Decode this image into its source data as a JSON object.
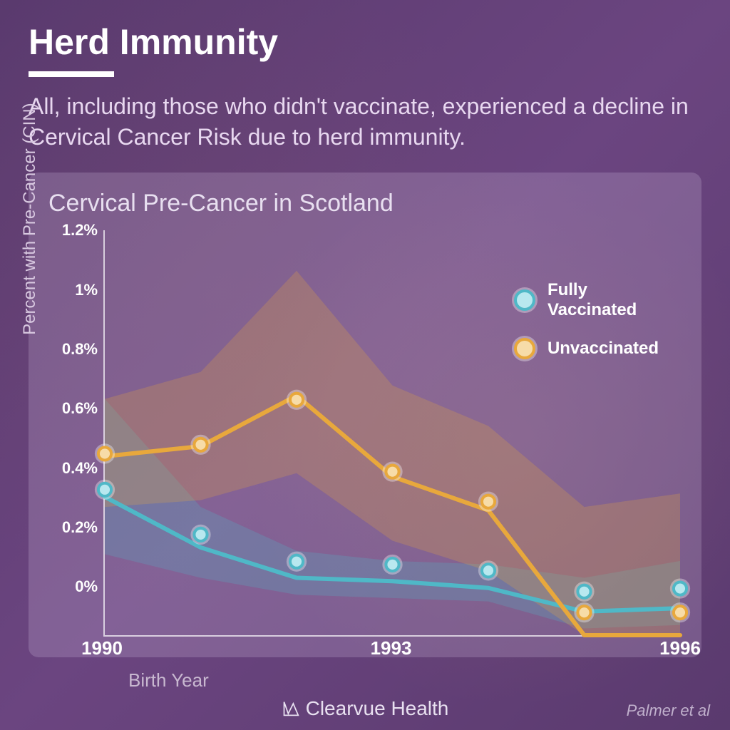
{
  "title": "Herd Immunity",
  "subtitle": "All, including those who didn't vaccinate, experienced a decline in Cervical Cancer Risk due to herd immunity.",
  "chart": {
    "type": "line",
    "title": "Cervical Pre-Cancer in Scotland",
    "y_label": "Percent with Pre-Cancer (CIN)",
    "x_label": "Birth Year",
    "ylim": [
      0,
      1.2
    ],
    "y_ticks": [
      {
        "value": 0,
        "label": "0%"
      },
      {
        "value": 0.2,
        "label": "0.2%"
      },
      {
        "value": 0.4,
        "label": "0.4%"
      },
      {
        "value": 0.6,
        "label": "0.6%"
      },
      {
        "value": 0.8,
        "label": "0.8%"
      },
      {
        "value": 1.0,
        "label": "1%"
      },
      {
        "value": 1.2,
        "label": "1.2%"
      }
    ],
    "x_values": [
      1990,
      1991,
      1992,
      1993,
      1994,
      1995,
      1996
    ],
    "x_tick_labels": [
      {
        "x": 1990,
        "label": "1990"
      },
      {
        "x": 1993,
        "label": "1993"
      },
      {
        "x": 1996,
        "label": "1996"
      }
    ],
    "series": [
      {
        "name": "Fully Vaccinated",
        "legend_label": "Fully\nVaccinated",
        "color": "#4fb8c7",
        "marker_fill": "#b8e8ef",
        "line_width": 6,
        "marker_radius": 9,
        "values": [
          0.41,
          0.26,
          0.17,
          0.16,
          0.14,
          0.07,
          0.08
        ],
        "ci_upper": [
          0.7,
          0.38,
          0.25,
          0.22,
          0.21,
          0.17,
          0.22
        ],
        "ci_lower": [
          0.24,
          0.17,
          0.12,
          0.11,
          0.1,
          0.02,
          0.03
        ]
      },
      {
        "name": "Unvaccinated",
        "legend_label": "Unvaccinated",
        "color": "#e8a83c",
        "marker_fill": "#f7dca8",
        "line_width": 6,
        "marker_radius": 9,
        "values": [
          0.53,
          0.56,
          0.71,
          0.47,
          0.37,
          0.0,
          0.0
        ],
        "ci_upper": [
          0.7,
          0.78,
          1.08,
          0.74,
          0.62,
          0.38,
          0.42
        ],
        "ci_lower": [
          0.38,
          0.4,
          0.48,
          0.28,
          0.19,
          0.0,
          0.0
        ]
      }
    ],
    "background_color": "rgba(220,200,230,0.22)",
    "axis_color": "rgba(255,255,255,0.7)",
    "ci_opacity": 0.25
  },
  "brand": "Clearvue Health",
  "attribution": "Palmer et al",
  "colors": {
    "page_bg_start": "#5a3a6e",
    "page_bg_end": "#6b4580",
    "text_primary": "#ffffff",
    "text_secondary": "#e8d8f0",
    "text_muted": "#c8b8d0"
  }
}
